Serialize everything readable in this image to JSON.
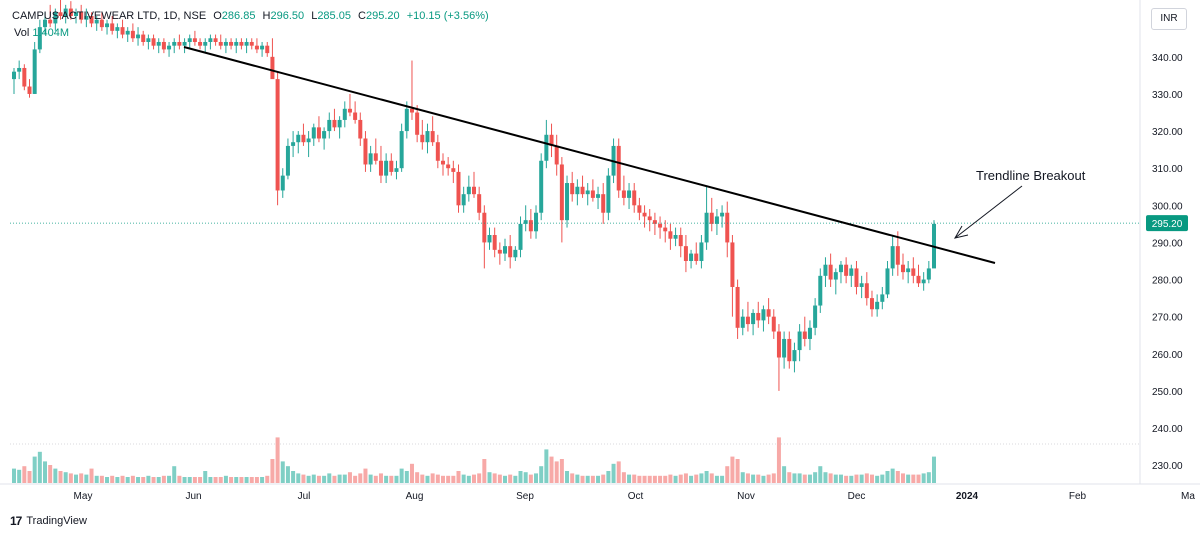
{
  "header": {
    "symbol": "CAMPUS ACTIVEWEAR LTD, 1D, NSE",
    "o_label": "O",
    "o": "286.85",
    "h_label": "H",
    "h": "296.50",
    "l_label": "L",
    "l": "285.05",
    "c_label": "C",
    "c": "295.20",
    "change": "+10.15 (+3.56%)",
    "vol_label": "Vol",
    "vol": "1.404M"
  },
  "currency": "INR",
  "branding": "TradingView",
  "colors": {
    "up": "#26a69a",
    "down": "#ef5350",
    "vol_up": "#7fcfc5",
    "vol_down": "#f7a9a7",
    "last": "#089981"
  },
  "chart_data": {
    "type": "candlestick",
    "annotation": "Trendline Breakout",
    "price_tick_labels": [
      "230.00",
      "240.00",
      "250.00",
      "260.00",
      "270.00",
      "280.00",
      "290.00",
      "300.00",
      "310.00",
      "320.00",
      "330.00",
      "340.00"
    ],
    "ylim": [
      226,
      351
    ],
    "last_price": "295.20",
    "x_tick_labels": [
      "May",
      "Jun",
      "Jul",
      "Aug",
      "Sep",
      "Oct",
      "Nov",
      "Dec",
      "2024",
      "Feb",
      "Ma"
    ],
    "x_tick_days": [
      20,
      51,
      81,
      112,
      143,
      173,
      204,
      234,
      265,
      296,
      325
    ],
    "xlim_days": [
      0,
      340
    ],
    "trendline": {
      "start_day": 50,
      "start_price": 344.5,
      "end_day": 283,
      "end_price": 286.5
    },
    "candles": [],
    "volume_max": 100
  }
}
